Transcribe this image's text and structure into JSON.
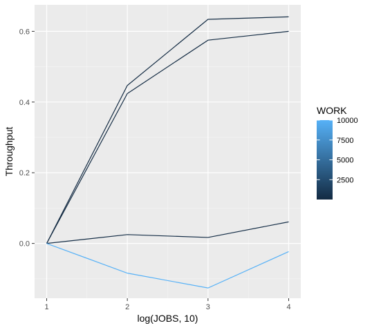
{
  "chart_data": {
    "type": "line",
    "xlabel": "log(JOBS, 10)",
    "ylabel": "Throughput",
    "x": [
      1,
      2,
      3,
      4
    ],
    "xlim": [
      0.85,
      4.15
    ],
    "ylim": [
      -0.155,
      0.675
    ],
    "x_ticks": [
      1,
      2,
      3,
      4
    ],
    "x_tick_labels": [
      "1",
      "2",
      "3",
      "4"
    ],
    "y_ticks": [
      0.0,
      0.2,
      0.4,
      0.6
    ],
    "y_tick_labels": [
      "0.0",
      "0.2",
      "0.4",
      "0.6"
    ],
    "grid": true,
    "legend": {
      "title": "WORK",
      "type": "colorbar",
      "placement": "right",
      "range": [
        1,
        10000
      ],
      "ticks": [
        2500,
        5000,
        7500,
        10000
      ],
      "tick_labels": [
        "2500",
        "5000",
        "7500",
        "10000"
      ],
      "color_low": "#132B43",
      "color_high": "#56B1F7"
    },
    "series": [
      {
        "work": 1,
        "color": "#132B43",
        "values": [
          0.0,
          0.447,
          0.634,
          0.641
        ]
      },
      {
        "work": 10,
        "color": "#132B43",
        "values": [
          0.0,
          0.424,
          0.575,
          0.6
        ]
      },
      {
        "work": 100,
        "color": "#142D46",
        "values": [
          0.0,
          0.025,
          0.017,
          0.061
        ]
      },
      {
        "work": 10000,
        "color": "#56B1F7",
        "values": [
          0.0,
          -0.084,
          -0.126,
          -0.023
        ]
      }
    ]
  }
}
